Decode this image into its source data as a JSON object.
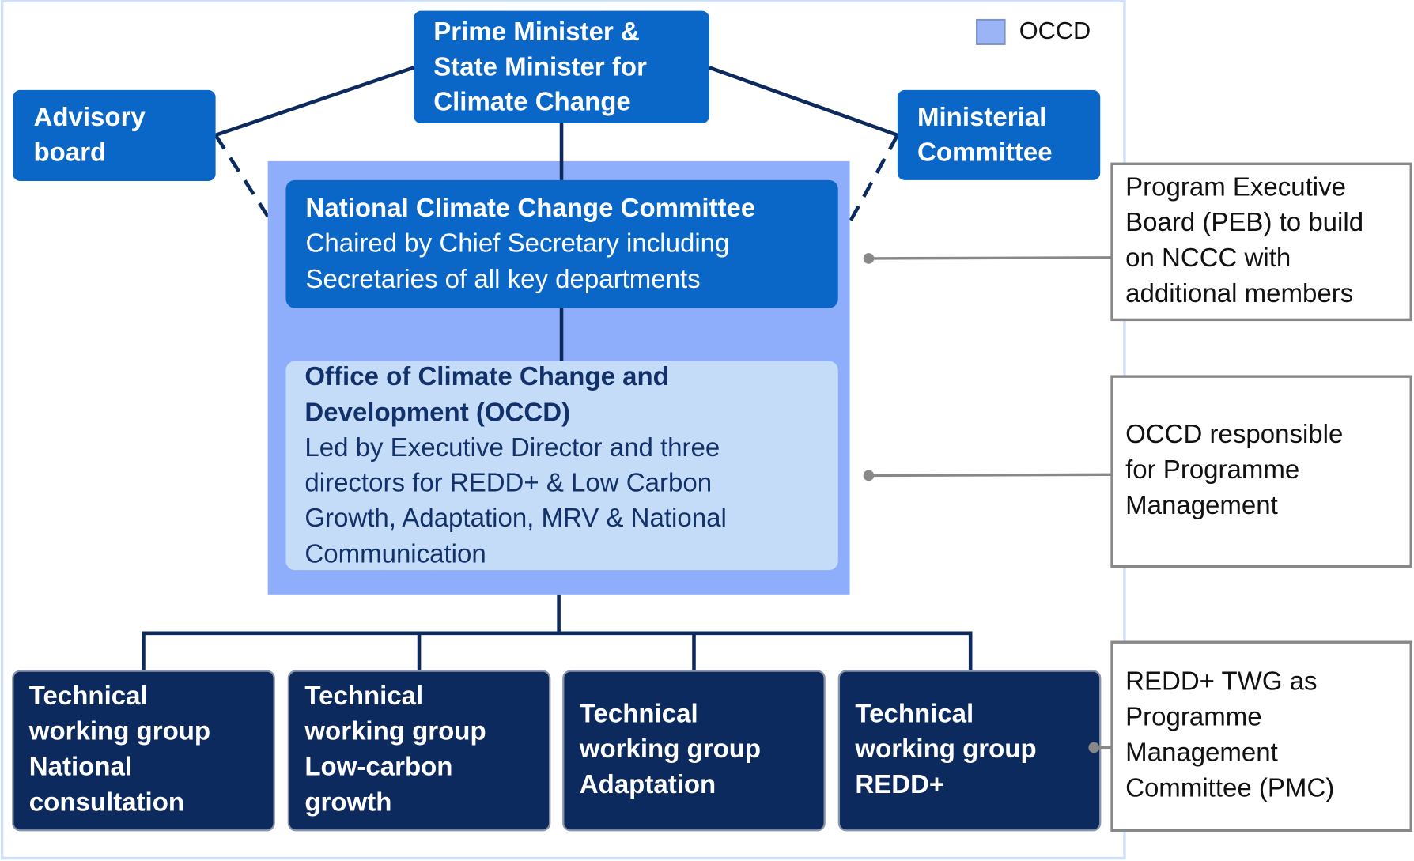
{
  "legend": "OCCD",
  "top": {
    "lines": [
      "Prime Minister  &",
      "State Minister for",
      "Climate Change"
    ]
  },
  "advisory": {
    "lines": [
      "Advisory",
      "board"
    ]
  },
  "ministerial": {
    "lines": [
      "Ministerial",
      "Committee"
    ]
  },
  "nccc": {
    "title": "National Climate Change Committee",
    "lines": [
      "Chaired by Chief Secretary including",
      "Secretaries of all key departments"
    ]
  },
  "occd": {
    "title": [
      "Office of Climate Change and",
      "Development (OCCD)"
    ],
    "lines": [
      "Led by Executive Director and three",
      "directors for REDD+ & Low Carbon",
      "Growth, Adaptation, MRV & National",
      "Communication"
    ]
  },
  "groups": [
    {
      "lines": [
        "Technical",
        "working group",
        "National",
        "consultation"
      ]
    },
    {
      "lines": [
        "Technical",
        "working group",
        "Low-carbon",
        "growth"
      ]
    },
    {
      "lines": [
        "Technical",
        "working group",
        "Adaptation"
      ]
    },
    {
      "lines": [
        "Technical",
        "working group",
        "REDD+"
      ]
    }
  ],
  "annotations": [
    {
      "lines": [
        "Program Executive",
        "Board (PEB) to build",
        "on NCCC with",
        "additional members"
      ]
    },
    {
      "lines": [
        "OCCD responsible",
        "for Programme",
        "Management"
      ]
    },
    {
      "lines": [
        "REDD+ TWG as",
        "Programme",
        "Management",
        "Committee (PMC)"
      ]
    }
  ]
}
